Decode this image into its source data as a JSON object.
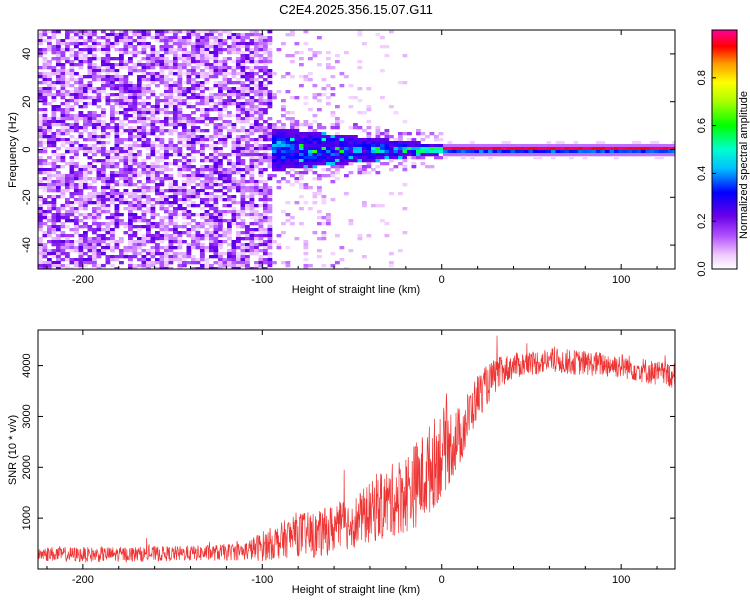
{
  "title": "C2E4.2025.356.15.07.G11",
  "chart_data": [
    {
      "type": "heatmap",
      "xlabel": "Height of straight line (km)",
      "ylabel": "Frequency (Hz)",
      "xlim": [
        -225,
        130
      ],
      "ylim": [
        -50,
        50
      ],
      "xticks": [
        -200,
        -100,
        0,
        100
      ],
      "yticks": [
        -40,
        -20,
        0,
        20,
        40
      ],
      "colorbar": {
        "label": "Normalized spectral amplitude",
        "range": [
          0,
          1
        ],
        "ticks": [
          "0.0",
          "0.2",
          "0.4",
          "0.6",
          "0.8"
        ],
        "tick_values": [
          0,
          0.2,
          0.4,
          0.6,
          0.8
        ],
        "colormap": "rainbow (white-magenta-purple-blue-cyan-green-yellow-orange-red)"
      },
      "regions": [
        {
          "x_range": [
            -225,
            -95
          ],
          "description": "scattered noise, low amplitude (~0.05-0.2) across all frequencies"
        },
        {
          "x_range": [
            -95,
            0
          ],
          "freq_spread_hz": [
            -8,
            8
          ],
          "amplitude": "0.2-0.5, peaks ~0.6"
        },
        {
          "x_range": [
            0,
            130
          ],
          "frequency_hz": 0,
          "amplitude": "~0.9-1.0 narrow line"
        }
      ]
    },
    {
      "type": "line",
      "xlabel": "Height of straight line (km)",
      "ylabel": "SNR (10 * v/v)",
      "xlim": [
        -225,
        130
      ],
      "ylim": [
        0,
        4700
      ],
      "xticks": [
        -200,
        -100,
        0,
        100
      ],
      "yticks": [
        1000,
        2000,
        3000,
        4000
      ],
      "color": "#ee3333",
      "series": [
        {
          "name": "SNR",
          "x": [
            -225,
            -200,
            -175,
            -150,
            -125,
            -110,
            -100,
            -90,
            -80,
            -70,
            -60,
            -50,
            -40,
            -30,
            -20,
            -10,
            0,
            10,
            20,
            30,
            40,
            60,
            80,
            100,
            120,
            130
          ],
          "y": [
            300,
            280,
            290,
            300,
            320,
            350,
            450,
            550,
            700,
            650,
            800,
            900,
            1100,
            1300,
            1500,
            1800,
            2300,
            2600,
            3400,
            3800,
            4000,
            4100,
            4050,
            4000,
            3850,
            3800
          ],
          "noise_amplitude": [
            150,
            150,
            150,
            150,
            160,
            180,
            300,
            350,
            450,
            450,
            500,
            500,
            600,
            700,
            800,
            900,
            900,
            600,
            450,
            350,
            250,
            250,
            250,
            250,
            250,
            250
          ]
        }
      ]
    }
  ]
}
